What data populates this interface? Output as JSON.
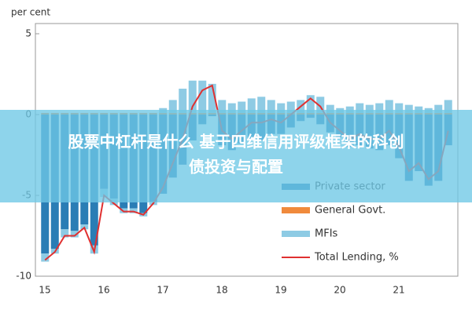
{
  "chart_data": {
    "type": "bar",
    "stacked": true,
    "ylabel": "per cent",
    "categories": [
      "15",
      null,
      null,
      null,
      null,
      null,
      "16",
      null,
      null,
      null,
      null,
      null,
      "17",
      null,
      null,
      null,
      null,
      null,
      "18",
      null,
      null,
      null,
      null,
      null,
      "19",
      null,
      null,
      null,
      null,
      null,
      "20",
      null,
      null,
      null,
      null,
      null,
      "21",
      null,
      null,
      null,
      null,
      null
    ],
    "series": [
      {
        "name": "Private sector",
        "color": "#2a7db5",
        "values": [
          -8.6,
          -8.3,
          -7.1,
          -7.2,
          -6.8,
          -8.1,
          -4.6,
          -5.2,
          -5.8,
          -5.8,
          -6.1,
          -5.4,
          -4.9,
          -3.9,
          -3.1,
          -1.6,
          -0.6,
          -0.1,
          -1.9,
          -2.2,
          -1.8,
          -1.5,
          -1.6,
          -1.2,
          -1.2,
          -0.8,
          -0.4,
          -0.2,
          -0.6,
          -1.1,
          -1.4,
          -2.0,
          -1.9,
          -2.1,
          -2.2,
          -1.9,
          -2.7,
          -4.1,
          -3.5,
          -4.4,
          -4.1,
          -1.9
        ]
      },
      {
        "name": "General Govt.",
        "color": "#f08a3c",
        "values": [
          0.1,
          0.1,
          0.1,
          0.1,
          0.1,
          0.1,
          0.1,
          0.1,
          0.1,
          0.1,
          0.1,
          0.1,
          0.1,
          0.1,
          0.1,
          0.1,
          0.1,
          0.1,
          0.1,
          0.1,
          0.1,
          0.1,
          0.1,
          0.1,
          0.1,
          0.1,
          0.1,
          0.1,
          0.1,
          0.1,
          0.1,
          0.1,
          0.1,
          0.1,
          0.1,
          0.1,
          0.1,
          0.1,
          0.1,
          0.1,
          0.1,
          0.1
        ]
      },
      {
        "name": "MFIs",
        "color": "#8ecbe4",
        "values": [
          -0.5,
          -0.3,
          -0.5,
          -0.4,
          -0.3,
          -0.5,
          -0.5,
          -0.4,
          -0.3,
          -0.3,
          -0.2,
          -0.2,
          0.3,
          0.8,
          1.5,
          2.0,
          2.0,
          1.8,
          0.8,
          0.6,
          0.7,
          0.9,
          1.0,
          0.8,
          0.6,
          0.7,
          0.8,
          1.1,
          1.0,
          0.5,
          0.3,
          0.4,
          0.6,
          0.5,
          0.6,
          0.8,
          0.6,
          0.5,
          0.4,
          0.3,
          0.5,
          0.8
        ]
      },
      {
        "name": "Total Lending, %",
        "color": "#e03030",
        "type": "line",
        "values": [
          -9,
          -8.5,
          -7.5,
          -7.5,
          -7,
          -8.5,
          -5,
          -5.5,
          -6,
          -6,
          -6.2,
          -5.5,
          -4.5,
          -3,
          -1.5,
          0.5,
          1.5,
          1.8,
          -1,
          -1.5,
          -1,
          -0.5,
          -0.5,
          -0.3,
          -0.5,
          0,
          0.5,
          1,
          0.5,
          -0.5,
          -1,
          -1.5,
          -1.2,
          -1.5,
          -1.5,
          -1,
          -2,
          -3.5,
          -3,
          -4,
          -3.5,
          -1
        ]
      }
    ],
    "ylim": [
      -10,
      5
    ],
    "yticks": [
      -10,
      -5,
      0,
      5
    ],
    "grid": false,
    "legend": "lower right"
  },
  "banner": {
    "lines": [
      "股票中杠杆是什么 基于四维信用评级框架的科创",
      "债投资与配置"
    ]
  }
}
